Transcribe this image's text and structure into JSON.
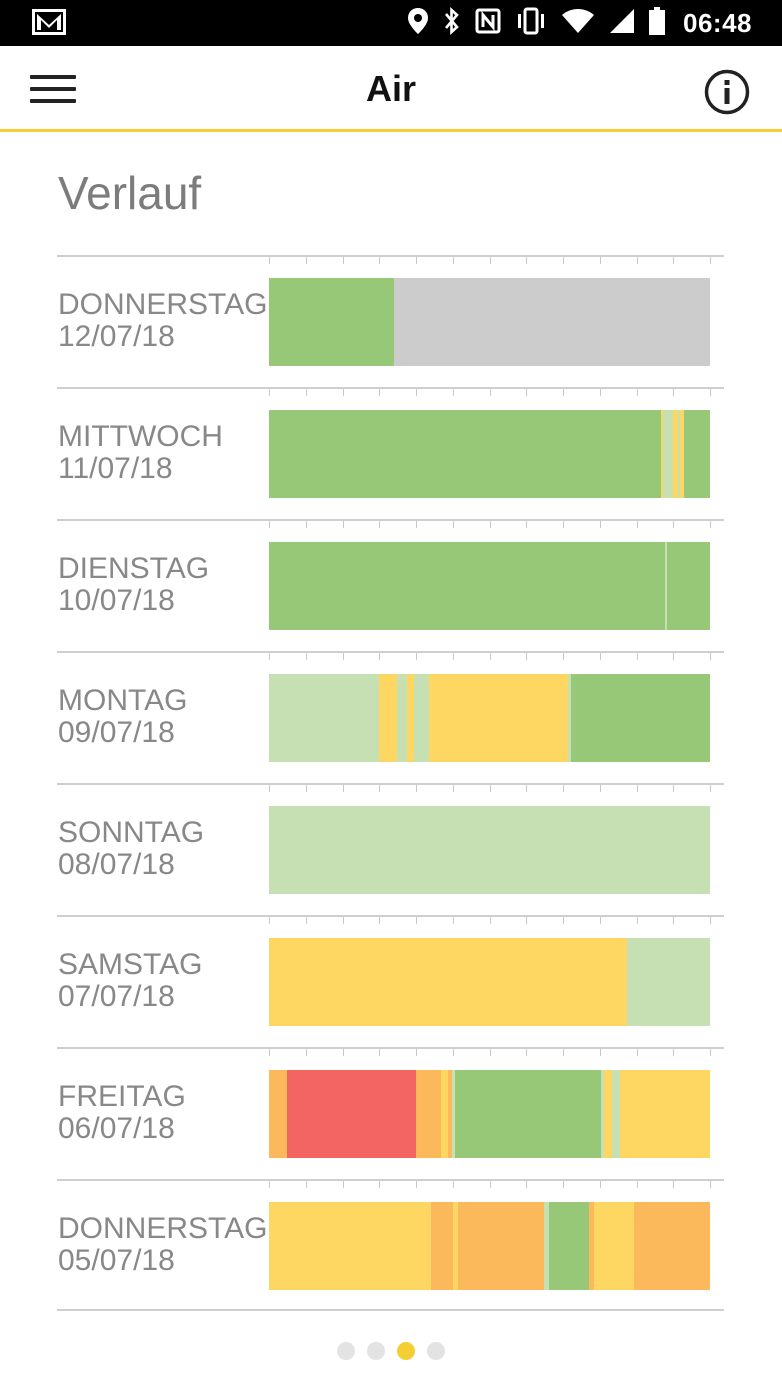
{
  "status_bar": {
    "time": "06:48",
    "icons": [
      "gmail-icon",
      "location-icon",
      "bluetooth-icon",
      "nfc-icon",
      "vibrate-icon",
      "wifi-icon",
      "signal-icon",
      "battery-icon"
    ]
  },
  "app_bar": {
    "title": "Air",
    "menu_icon": "hamburger-menu-icon",
    "info_icon": "info-icon",
    "accent_color": "#f3cf34"
  },
  "section_title": "Verlauf",
  "colors": {
    "green": "#97c878",
    "lightgreen": "#c6e0b4",
    "yellow": "#fdd762",
    "orange": "#fcb95b",
    "red": "#f26562",
    "gray": "#cccccc"
  },
  "history": [
    {
      "day": "DONNERSTAG",
      "date": "12/07/18",
      "segments": [
        [
          "green",
          28.3
        ],
        [
          "gray",
          71.7
        ]
      ]
    },
    {
      "day": "MITTWOCH",
      "date": "11/07/18",
      "segments": [
        [
          "green",
          88.9
        ],
        [
          "yellow",
          0.5
        ],
        [
          "lightgreen",
          2.3
        ],
        [
          "yellow",
          1.0
        ],
        [
          "lightgreen",
          0.5
        ],
        [
          "yellow",
          1.0
        ],
        [
          "green",
          5.8
        ]
      ]
    },
    {
      "day": "DIENSTAG",
      "date": "10/07/18",
      "segments": [
        [
          "green",
          89.8
        ],
        [
          "lightgreen",
          0.5
        ],
        [
          "green",
          9.7
        ]
      ]
    },
    {
      "day": "MONTAG",
      "date": "09/07/18",
      "segments": [
        [
          "lightgreen",
          25.0
        ],
        [
          "yellow",
          4.1
        ],
        [
          "lightgreen",
          2.1
        ],
        [
          "yellow",
          1.6
        ],
        [
          "lightgreen",
          3.4
        ],
        [
          "yellow",
          31.7
        ],
        [
          "lightgreen",
          0.6
        ],
        [
          "green",
          31.5
        ]
      ]
    },
    {
      "day": "SONNTAG",
      "date": "08/07/18",
      "segments": [
        [
          "lightgreen",
          100
        ]
      ]
    },
    {
      "day": "SAMSTAG",
      "date": "07/07/18",
      "segments": [
        [
          "yellow",
          81.2
        ],
        [
          "lightgreen",
          18.8
        ]
      ]
    },
    {
      "day": "FREITAG",
      "date": "06/07/18",
      "segments": [
        [
          "orange",
          4.0
        ],
        [
          "red",
          29.3
        ],
        [
          "orange",
          5.7
        ],
        [
          "yellow",
          1.6
        ],
        [
          "orange",
          1.0
        ],
        [
          "lightgreen",
          0.7
        ],
        [
          "green",
          32.9
        ],
        [
          "lightgreen",
          0.7
        ],
        [
          "yellow",
          2.0
        ],
        [
          "lightgreen",
          1.6
        ],
        [
          "yellow",
          20.5
        ]
      ]
    },
    {
      "day": "DONNERSTAG",
      "date": "05/07/18",
      "segments": [
        [
          "yellow",
          36.7
        ],
        [
          "orange",
          5.0
        ],
        [
          "yellow",
          1.1
        ],
        [
          "orange",
          19.5
        ],
        [
          "lightgreen",
          1.1
        ],
        [
          "green",
          9.1
        ],
        [
          "orange",
          1.1
        ],
        [
          "yellow",
          9.1
        ],
        [
          "orange",
          17.3
        ]
      ]
    }
  ],
  "pager": {
    "count": 4,
    "active_index": 2
  }
}
